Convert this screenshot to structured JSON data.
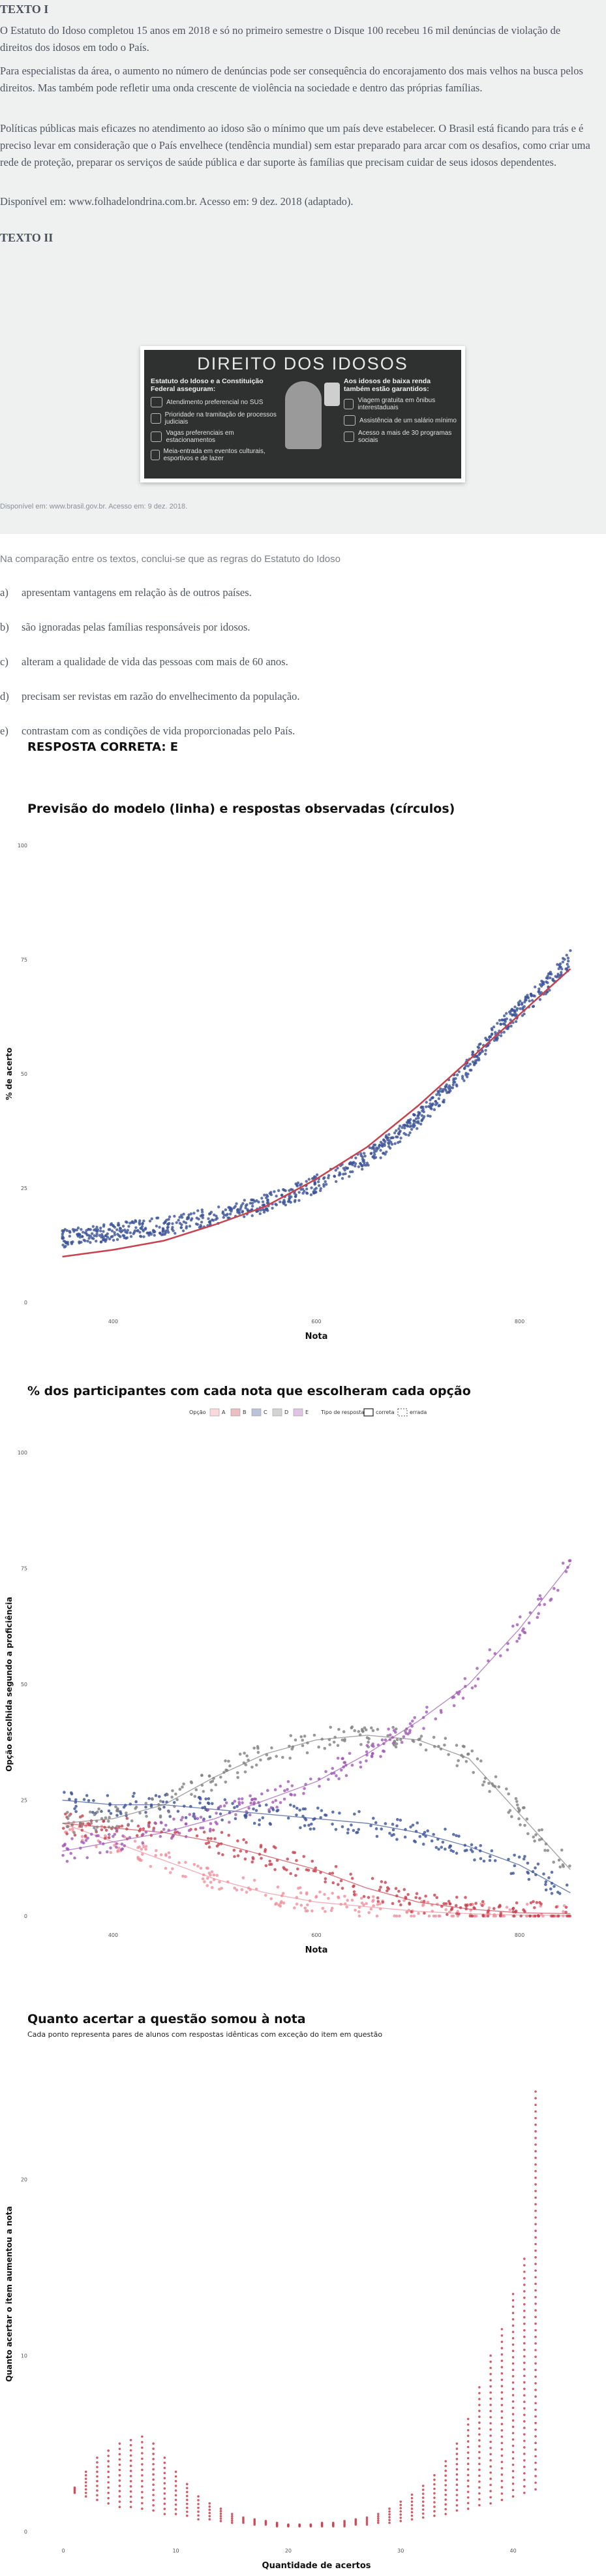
{
  "texto1": {
    "heading": "TEXTO I",
    "paragraphs": [
      "O Estatuto do Idoso completou 15 anos em 2018 e só no primeiro semestre o Disque 100 recebeu 16 mil denúncias de violação de direitos dos idosos em todo o País.",
      "Para especialistas da área, o aumento no número de denúncias pode ser consequência do encorajamento dos mais velhos na busca pelos direitos. Mas também pode refletir uma onda crescente de violência na sociedade e dentro das próprias famílias.",
      "Políticas públicas mais eficazes no atendimento ao idoso são o mínimo que um país deve estabelecer. O Brasil está ficando para trás e é preciso levar em consideração que o País envelhece (tendência mundial) sem estar preparado para arcar com os desafios, como criar uma rede de proteção, preparar os serviços de saúde pública e dar suporte às famílias que precisam cuidar de seus idosos dependentes.",
      "Disponível em: www.folhadelondrina.com.br. Acesso em: 9 dez. 2018 (adaptado)."
    ]
  },
  "texto2": {
    "heading": "TEXTO II",
    "poster_title": "DIREITO DOS IDOSOS",
    "left_heading": "Estatuto do Idoso e a Constituição Federal asseguram:",
    "left_items": [
      "Atendimento preferencial no SUS",
      "Prioridade na tramitação de processos judiciais",
      "Vagas preferenciais em estacionamentos",
      "Meia-entrada em eventos culturais, esportivos e de lazer"
    ],
    "right_heading": "Aos idosos de baixa renda também estão garantidos:",
    "right_items": [
      "Viagem gratuita em ônibus interestaduais",
      "Assistência de um salário mínimo",
      "Acesso a mais de 30 programas sociais"
    ],
    "source": "Disponível em: www.brasil.gov.br. Acesso em: 9 dez. 2018."
  },
  "question": {
    "stem": "Na comparação entre os textos, conclui-se que as regras do Estatuto do Idoso",
    "options": [
      {
        "letter": "a)",
        "text": "apresentam vantagens em relação às de outros países."
      },
      {
        "letter": "b)",
        "text": "são ignoradas pelas famílias responsáveis por idosos."
      },
      {
        "letter": "c)",
        "text": "alteram a qualidade de vida das pessoas com mais de 60 anos."
      },
      {
        "letter": "d)",
        "text": "precisam ser revistas em razão do envelhecimento da população."
      },
      {
        "letter": "e)",
        "text": "contrastam com as condições de vida proporcionadas pelo País."
      }
    ],
    "answer": "RESPOSTA CORRETA: E"
  },
  "colors": {
    "red": "#c8414e",
    "blue": "#3b5296",
    "pink": "#f0909c",
    "gray": "#808080",
    "purple": "#a05ab4"
  },
  "chart_data": [
    {
      "type": "scatter",
      "title": "Previsão do modelo (linha) e respostas observadas (círculos)",
      "xlabel": "Nota",
      "ylabel": "% de acerto",
      "xlim": [
        340,
        860
      ],
      "ylim": [
        0,
        100
      ],
      "xticks": [
        400,
        600,
        800
      ],
      "xtick_labels": [
        "400",
        "600",
        "800"
      ],
      "yticks": [
        0,
        25,
        50,
        75,
        100
      ],
      "observed_curve": {
        "x": [
          350,
          380,
          420,
          460,
          500,
          540,
          580,
          620,
          660,
          700,
          740,
          780,
          820,
          850
        ],
        "y": [
          14,
          15,
          16,
          17,
          19,
          21,
          24,
          28,
          33,
          40,
          49,
          60,
          68,
          75
        ]
      },
      "model_curve": {
        "x": [
          350,
          400,
          450,
          500,
          550,
          600,
          650,
          700,
          750,
          800,
          850
        ],
        "y": [
          10,
          11.5,
          13.5,
          17,
          21,
          27,
          34,
          43,
          53,
          63,
          73
        ]
      }
    },
    {
      "type": "scatter",
      "title": "% dos participantes com cada nota que escolheram cada opção",
      "xlabel": "Nota",
      "ylabel": "Opção escolhida segundo a proficiência",
      "legend_option_label": "Opção",
      "legend_type_label": "Tipo de resposta",
      "legend_options": [
        "A",
        "B",
        "C",
        "D",
        "E"
      ],
      "legend_types": [
        "correta",
        "errada"
      ],
      "xlim": [
        340,
        860
      ],
      "ylim": [
        0,
        100
      ],
      "xticks": [
        400,
        600,
        800
      ],
      "xtick_labels": [
        "400",
        "600",
        "800"
      ],
      "yticks": [
        0,
        25,
        50,
        75,
        100
      ],
      "x": [
        350,
        400,
        450,
        500,
        550,
        600,
        650,
        700,
        750,
        800,
        850
      ],
      "series": [
        {
          "key": "A",
          "color": "#f0909c",
          "values": [
            20,
            16,
            12,
            8,
            5,
            3,
            2,
            1,
            0.5,
            0.2,
            0.1
          ]
        },
        {
          "key": "B",
          "color": "#c8414e",
          "values": [
            20,
            19,
            18,
            16,
            13,
            10,
            6,
            3,
            1.5,
            0.7,
            0.5
          ]
        },
        {
          "key": "C",
          "color": "#3b5296",
          "values": [
            25,
            24,
            24,
            23,
            22,
            21,
            20,
            18,
            15,
            11,
            5
          ]
        },
        {
          "key": "D",
          "color": "#808080",
          "values": [
            20,
            21,
            24,
            30,
            35,
            38,
            39,
            38,
            34,
            22,
            10
          ]
        },
        {
          "key": "E",
          "color": "#a05ab4",
          "values": [
            14,
            16,
            18,
            21,
            25,
            29,
            35,
            42,
            50,
            62,
            76
          ]
        }
      ]
    },
    {
      "type": "scatter",
      "title": "Quanto acertar a questão somou à nota",
      "subtitle": "Cada ponto representa pares de alunos com respostas idênticas com exceção do item em questão",
      "xlabel": "Quantidade de acertos",
      "ylabel": "Quanto acertar o item aumentou a nota",
      "xlim": [
        -1,
        46
      ],
      "ylim": [
        0,
        27
      ],
      "xticks": [
        0,
        10,
        20,
        30,
        40
      ],
      "xtick_labels": [
        "0",
        "10",
        "20",
        "30",
        "40"
      ],
      "yticks": [
        0,
        10,
        20
      ],
      "points": {
        "x": [
          1,
          2,
          3,
          4,
          5,
          6,
          7,
          8,
          9,
          10,
          11,
          12,
          13,
          14,
          15,
          16,
          17,
          18,
          19,
          20,
          21,
          22,
          23,
          24,
          25,
          26,
          27,
          28,
          29,
          30,
          31,
          32,
          33,
          34,
          35,
          36,
          37,
          38,
          39,
          40,
          41,
          42
        ],
        "ymin": [
          2.2,
          2.0,
          1.8,
          1.6,
          1.4,
          1.4,
          1.3,
          1.2,
          1.0,
          1.0,
          0.9,
          0.7,
          0.7,
          0.6,
          0.5,
          0.5,
          0.4,
          0.4,
          0.3,
          0.3,
          0.3,
          0.3,
          0.3,
          0.3,
          0.3,
          0.4,
          0.4,
          0.5,
          0.5,
          0.6,
          0.7,
          0.8,
          0.9,
          1.0,
          1.2,
          1.3,
          1.5,
          1.6,
          1.8,
          2.0,
          2.2,
          2.4
        ],
        "ymax": [
          2.5,
          3.4,
          4.2,
          4.6,
          5.0,
          5.2,
          5.4,
          5.0,
          4.2,
          3.4,
          2.7,
          2.0,
          1.6,
          1.3,
          1.0,
          0.8,
          0.7,
          0.6,
          0.5,
          0.4,
          0.4,
          0.4,
          0.5,
          0.5,
          0.6,
          0.7,
          0.8,
          1.0,
          1.3,
          1.7,
          2.1,
          2.6,
          3.2,
          4.0,
          5.0,
          6.4,
          8.2,
          10.0,
          11.5,
          13.5,
          15.5,
          25.0
        ]
      }
    }
  ]
}
